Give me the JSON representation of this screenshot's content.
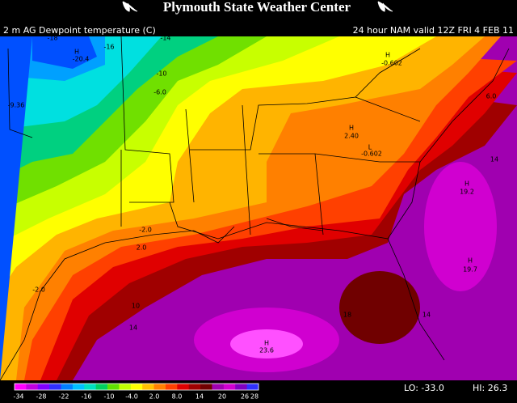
{
  "header": {
    "title": "Plymouth State Weather Center"
  },
  "subtitle": {
    "left": "2 m AG Dewpoint temperature (C)",
    "right": "24 hour NAM valid 12Z FRI 4 FEB 11"
  },
  "map_labels": [
    "-18",
    "-16",
    "-14",
    "H",
    "-20.4",
    "-10",
    "-6.0",
    "-9.36",
    "H",
    "-0.602",
    "6.0",
    "H",
    "2.40",
    "L",
    "-0.602",
    "14",
    "H",
    "19.2",
    "-2.0",
    "2.0",
    "H",
    "19.7",
    "-2.0",
    "10",
    "14",
    "18",
    "14",
    "H",
    "23.6"
  ],
  "colorbar": {
    "labels": [
      "-34",
      "-28",
      "-22",
      "-16",
      "-10",
      "-4.0",
      "2.0",
      "8.0",
      "14",
      "20",
      "26",
      "28"
    ]
  },
  "stats": {
    "lo": "LO: -33.0",
    "hi": "HI: 26.3"
  }
}
